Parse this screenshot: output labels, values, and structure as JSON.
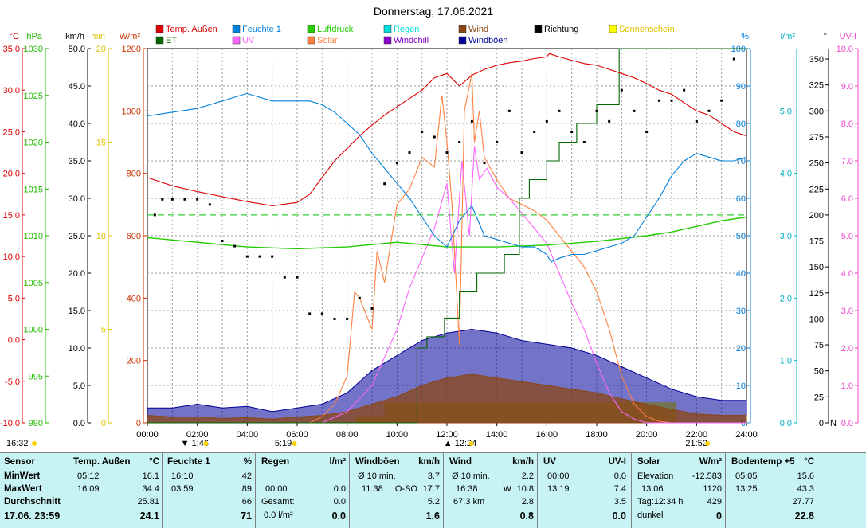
{
  "chart_data": {
    "type": "line",
    "title": "Donnerstag, 17.06.2021",
    "xlim": [
      0,
      24
    ],
    "x_ticks": [
      "00:00",
      "02:00",
      "04:00",
      "06:00",
      "08:00",
      "10:00",
      "12:00",
      "14:00",
      "16:00",
      "18:00",
      "20:00",
      "22:00",
      "24:00"
    ],
    "left_axes": [
      {
        "unit": "°C",
        "color": "#dd0000",
        "range": [
          -10,
          35
        ],
        "ticks": [
          "35.0",
          "30.0",
          "25.0",
          "20.0",
          "15.0",
          "10.0",
          "5.0",
          "0.0",
          "-5.0",
          "-10.0"
        ]
      },
      {
        "unit": "hPa",
        "color": "#22bb00",
        "range": [
          990,
          1030
        ],
        "ticks": [
          "1030",
          "1025",
          "1020",
          "1015",
          "1010",
          "1005",
          "1000",
          "995",
          "990"
        ]
      },
      {
        "unit": "km/h",
        "color": "#000000",
        "range": [
          0,
          50
        ],
        "ticks": [
          "50.0",
          "45.0",
          "40.0",
          "35.0",
          "30.0",
          "25.0",
          "20.0",
          "15.0",
          "10.0",
          "5.0",
          "0.0"
        ]
      },
      {
        "unit": "min",
        "color": "#e0c000",
        "range": [
          0,
          20
        ],
        "ticks": [
          "20",
          "15",
          "10",
          "5",
          "0"
        ]
      },
      {
        "unit": "W/m²",
        "color": "#cc3300",
        "range": [
          0,
          1200
        ],
        "ticks": [
          "1200",
          "1000",
          "800",
          "600",
          "400",
          "200",
          "0"
        ]
      }
    ],
    "right_axes": [
      {
        "unit": "%",
        "color": "#0080dd",
        "range": [
          0,
          100
        ],
        "ticks": [
          "100",
          "90",
          "80",
          "70",
          "60",
          "50",
          "40",
          "30",
          "20",
          "10",
          "0"
        ]
      },
      {
        "unit": "l/m²",
        "color": "#00b0c0",
        "range": [
          0,
          6
        ],
        "ticks": [
          "5.0",
          "4.0",
          "3.0",
          "2.0",
          "1.0",
          "0.0"
        ]
      },
      {
        "unit": "°",
        "color": "#000000",
        "range": [
          0,
          360
        ],
        "ticks": [
          "350",
          "325",
          "300",
          "275",
          "250",
          "225",
          "200",
          "175",
          "150",
          "125",
          "100",
          "75",
          "50",
          "25",
          "0"
        ],
        "zero_label": "N"
      },
      {
        "unit": "UV-I",
        "color": "#ee44cc",
        "range": [
          0,
          10
        ],
        "ticks": [
          "10.0",
          "9.0",
          "8.0",
          "7.0",
          "6.0",
          "5.0",
          "4.0",
          "3.0",
          "2.0",
          "1.0",
          "0.0"
        ]
      }
    ],
    "legend": [
      {
        "name": "Temp. Außen",
        "color": "#dd0000"
      },
      {
        "name": "Feuchte 1",
        "color": "#0080dd"
      },
      {
        "name": "Luftdruck",
        "color": "#22cc00"
      },
      {
        "name": "Regen",
        "color": "#00dddd"
      },
      {
        "name": "Wind",
        "color": "#8b4513"
      },
      {
        "name": "Richtung",
        "color": "#000000"
      },
      {
        "name": "Sonnenschein",
        "color": "#ffff00"
      },
      {
        "name": "ET",
        "color": "#006600"
      },
      {
        "name": "UV",
        "color": "#ff66ff"
      },
      {
        "name": "Solar",
        "color": "#ff8040"
      },
      {
        "name": "Windchill",
        "color": "#8800cc"
      },
      {
        "name": "Windböen",
        "color": "#000099"
      }
    ],
    "sun_markers": {
      "sunrise": "5:19",
      "noon": "12:24",
      "sunset": "21:52",
      "min_marker": "1:46",
      "now": "16:32"
    },
    "reference_line": {
      "series": "Temp. Außen",
      "value": 15.0,
      "color": "#33cc33"
    },
    "series": [
      {
        "name": "Temp. Außen",
        "axis": "°C",
        "x": [
          0,
          0.5,
          1,
          2,
          3,
          4,
          5,
          5.5,
          6,
          6.5,
          7,
          7.5,
          8,
          8.5,
          9,
          9.5,
          10,
          10.5,
          11,
          11.5,
          12,
          12.5,
          13,
          13.5,
          14,
          14.5,
          15,
          15.5,
          16,
          16.1,
          16.5,
          17,
          17.5,
          18,
          18.5,
          19,
          19.5,
          20,
          20.5,
          21,
          21.5,
          22,
          22.5,
          23,
          23.5,
          24
        ],
        "values": [
          19.5,
          19.0,
          18.5,
          17.8,
          17.2,
          16.6,
          16.1,
          16.3,
          16.5,
          17.5,
          19.5,
          21.5,
          23.0,
          24.5,
          25.8,
          27.0,
          28.0,
          29.0,
          30.0,
          31.5,
          32.0,
          30.5,
          31.8,
          32.5,
          33.0,
          33.3,
          33.5,
          33.8,
          34.0,
          34.4,
          34.0,
          33.6,
          33.2,
          33.0,
          32.5,
          32.0,
          31.5,
          30.8,
          30.0,
          29.5,
          28.5,
          27.5,
          27.0,
          26.0,
          25.0,
          24.5
        ]
      },
      {
        "name": "Feuchte 1",
        "axis": "%",
        "x": [
          0,
          1,
          2,
          3,
          3.98,
          4.5,
          5,
          5.5,
          6,
          6.5,
          7,
          7.5,
          8,
          8.5,
          9,
          9.5,
          10,
          10.5,
          11,
          11.5,
          12,
          12.5,
          13,
          13.5,
          14,
          14.5,
          15,
          15.5,
          16,
          16.17,
          16.5,
          17,
          17.5,
          18,
          18.5,
          19,
          19.5,
          20,
          20.5,
          21,
          21.5,
          22,
          22.5,
          23,
          23.5,
          24
        ],
        "values": [
          82,
          83,
          84,
          86,
          88,
          87,
          86,
          86,
          86,
          86,
          85,
          83,
          80,
          77,
          72,
          68,
          64,
          60,
          55,
          50,
          47,
          54,
          58,
          50,
          49,
          48,
          47,
          47,
          45,
          43,
          44,
          45,
          45,
          46,
          47,
          48,
          50,
          55,
          60,
          66,
          70,
          72,
          71,
          70,
          70,
          71
        ]
      },
      {
        "name": "Luftdruck",
        "axis": "hPa",
        "x": [
          0,
          2,
          4,
          6,
          8,
          10,
          12,
          14,
          16,
          18,
          20,
          21,
          22,
          23,
          24
        ],
        "values": [
          1009.8,
          1009.3,
          1008.8,
          1008.6,
          1008.8,
          1009.3,
          1008.8,
          1008.8,
          1009.0,
          1009.4,
          1010.0,
          1010.4,
          1011.0,
          1011.6,
          1012.0
        ]
      },
      {
        "name": "Solar",
        "axis": "W/m²",
        "x": [
          0,
          6.5,
          7,
          7.5,
          8,
          8.3,
          8.5,
          9,
          9.2,
          9.5,
          10,
          10.5,
          11,
          11.5,
          11.8,
          12,
          12.2,
          12.5,
          12.7,
          13,
          13.1,
          13.3,
          13.5,
          14,
          14.5,
          15,
          15.5,
          16,
          16.5,
          17,
          17.5,
          18,
          18.5,
          19,
          19.5,
          20,
          20.5,
          21,
          21.5,
          22,
          24
        ],
        "values": [
          0,
          0,
          20,
          60,
          150,
          420,
          400,
          300,
          550,
          450,
          700,
          750,
          850,
          820,
          1050,
          900,
          700,
          250,
          1000,
          1120,
          900,
          1000,
          850,
          780,
          720,
          700,
          680,
          650,
          600,
          550,
          500,
          420,
          300,
          150,
          60,
          20,
          5,
          0,
          0,
          0,
          0
        ]
      },
      {
        "name": "UV",
        "axis": "UV-I",
        "x": [
          0,
          7,
          8,
          9,
          10,
          10.5,
          11,
          11.5,
          12,
          12.3,
          12.6,
          12.9,
          13.1,
          13.3,
          13.6,
          14,
          14.5,
          15,
          15.5,
          16,
          16.5,
          17,
          17.5,
          18,
          18.5,
          19,
          19.5,
          20,
          24
        ],
        "values": [
          0,
          0,
          0.3,
          1.0,
          2.5,
          3.6,
          4.4,
          5.2,
          6.4,
          4.0,
          7.0,
          5.0,
          7.4,
          6.5,
          6.8,
          6.3,
          6.0,
          5.6,
          5.2,
          4.8,
          4.0,
          3.2,
          2.5,
          1.6,
          0.8,
          0.3,
          0.1,
          0,
          0
        ]
      },
      {
        "name": "ET",
        "axis": "%",
        "step": true,
        "x": [
          0,
          10.3,
          10.8,
          11.2,
          11.9,
          12.5,
          13.2,
          14.3,
          14.9,
          15.3,
          16.0,
          16.5,
          17.2,
          18.0,
          18.9,
          24
        ],
        "values": [
          0,
          0,
          20,
          23,
          28,
          35,
          40,
          45,
          60,
          65,
          70,
          75,
          80,
          85,
          100,
          100
        ]
      },
      {
        "name": "Wind",
        "axis": "km/h",
        "x": [
          0,
          1,
          2,
          3,
          4,
          5,
          6,
          7,
          8,
          9,
          10,
          11,
          12,
          13,
          14,
          15,
          16,
          17,
          18,
          19,
          20,
          21,
          22,
          23,
          24
        ],
        "values": [
          1.0,
          0.8,
          0.8,
          0.6,
          0.7,
          0.5,
          0.8,
          1.0,
          1.5,
          2.5,
          3.5,
          5.0,
          6.0,
          6.5,
          6.0,
          5.5,
          5.0,
          4.5,
          4.0,
          3.2,
          2.5,
          1.8,
          1.2,
          1.0,
          1.0
        ]
      },
      {
        "name": "Windböen",
        "axis": "km/h",
        "x": [
          0,
          1,
          2,
          3,
          4,
          5,
          6,
          7,
          8,
          9,
          10,
          11,
          12,
          13,
          14,
          15,
          16,
          17,
          18,
          19,
          20,
          21,
          22,
          23,
          24
        ],
        "values": [
          2.0,
          2.0,
          2.5,
          2.0,
          2.2,
          1.5,
          2.0,
          2.5,
          4.0,
          7.0,
          9.0,
          11.0,
          12.0,
          12.5,
          12.0,
          11.0,
          10.5,
          10.0,
          9.0,
          7.5,
          6.0,
          4.5,
          3.5,
          3.0,
          3.0
        ]
      },
      {
        "name": "Richtung",
        "axis": "°",
        "style": "dots",
        "x": [
          0.3,
          0.6,
          1,
          1.5,
          2,
          2.5,
          3,
          3.5,
          4,
          4.5,
          5,
          5.5,
          6,
          6.5,
          7,
          7.5,
          8,
          8.5,
          9,
          9.5,
          10,
          10.5,
          11,
          11.5,
          12,
          12.5,
          13,
          13.5,
          14,
          14.5,
          15,
          15.5,
          16,
          16.5,
          17,
          17.5,
          18,
          18.5,
          19,
          19.5,
          20,
          20.5,
          21,
          21.5,
          22,
          22.5,
          23,
          23.5
        ],
        "values": [
          200,
          215,
          215,
          215,
          215,
          210,
          175,
          170,
          160,
          160,
          160,
          140,
          140,
          105,
          105,
          100,
          100,
          120,
          110,
          230,
          250,
          260,
          280,
          275,
          260,
          270,
          290,
          250,
          270,
          300,
          260,
          280,
          290,
          300,
          280,
          270,
          300,
          290,
          320,
          300,
          280,
          310,
          310,
          320,
          290,
          300,
          310,
          350
        ]
      }
    ],
    "sunshine_blocks": [
      [
        8.3,
        9.5,
        0.35
      ],
      [
        9.5,
        21.2,
        1.1
      ]
    ]
  },
  "stats": {
    "sensor": {
      "title": "Sensor",
      "labels": [
        "MinWert",
        "MaxWert",
        "Durchschnitt",
        "17.06. 23:59"
      ]
    },
    "temp": {
      "title": "Temp. Außen",
      "unit": "°C",
      "min_time": "05:12",
      "min": "16.1",
      "max_time": "16:09",
      "max": "34.4",
      "avg": "25.81",
      "current": "24.1"
    },
    "feuchte": {
      "title": "Feuchte 1",
      "unit": "%",
      "min_time": "16:10",
      "min": "42",
      "max_time": "03:59",
      "max": "89",
      "avg": "66",
      "current": "71"
    },
    "regen": {
      "title": "Regen",
      "unit": "l/m²",
      "r1_time": "00:00",
      "r1": "0.0",
      "gesamt_label": "Gesamt:",
      "gesamt": "0.0",
      "rate": "0.0 l/m²",
      "current": "0.0"
    },
    "boeen": {
      "title": "Windböen",
      "unit": "km/h",
      "r0_label": "Ø 10 min.",
      "r0": "3.7",
      "max_time": "11:38",
      "max_dir": "O-SO",
      "max": "17.7",
      "avg": "5.2",
      "current": "1.6"
    },
    "wind": {
      "title": "Wind",
      "unit": "km/h",
      "r0_label": "Ø 10 min.",
      "r0": "2.2",
      "max_time": "16:38",
      "max_dir": "W",
      "max": "10.8",
      "run": "67.3 km",
      "avg": "2.8",
      "current": "0.8"
    },
    "uv": {
      "title": "UV",
      "unit": "UV-I",
      "min_time": "00:00",
      "min": "0.0",
      "max_time": "13:19",
      "max": "7.4",
      "avg": "3.5",
      "current": "0.0"
    },
    "solar": {
      "title": "Solar",
      "unit": "W/m²",
      "elev_label": "Elevation",
      "elev": "-12.583",
      "max_time": "13:06",
      "max": "1120",
      "day_label": "Tag:12:34 h",
      "avg": "429",
      "dark_label": "dunkel",
      "current": "0"
    },
    "boden": {
      "title": "Bodentemp +5",
      "unit": "°C",
      "min_time": "05:05",
      "min": "15.6",
      "max_time": "13:25",
      "max": "43.3",
      "avg": "27.77",
      "current": "22.8"
    }
  }
}
